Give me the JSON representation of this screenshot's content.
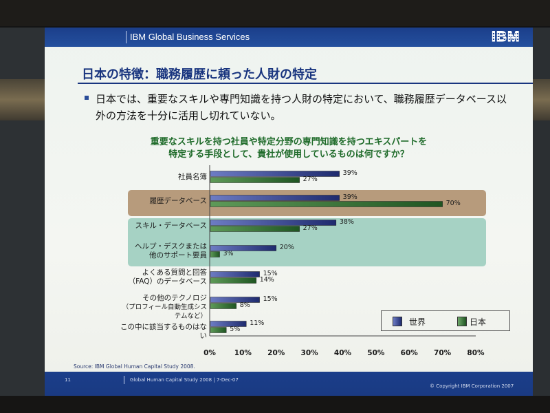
{
  "header": {
    "company": "IBM Global Business Services",
    "logo_text": "IBM"
  },
  "slide": {
    "title": "日本の特徴：職務履歴に頼った人財の特定",
    "bullet": "日本では、重要なスキルや専門知識を持つ人財の特定において、職務履歴データベース以外の方法を十分に活用し切れていない。"
  },
  "chart_data": {
    "type": "bar",
    "orientation": "horizontal",
    "title": "重要なスキルを持つ社員や特定分野の専門知識を持つエキスパートを",
    "subtitle": "特定する手段として、貴社が使用しているものは何ですか？",
    "categories": [
      [
        "社員名簿"
      ],
      [
        "履歴データベース"
      ],
      [
        "スキル・データベース"
      ],
      [
        "ヘルプ・デスクまたは",
        "他のサポート要員"
      ],
      [
        "よくある質問と回答",
        "（FAQ）のデータベース"
      ],
      [
        "その他のテクノロジ",
        "（プロフィール自動生成システムなど）"
      ],
      [
        "この中に該当するものはない"
      ]
    ],
    "series": [
      {
        "name": "世界",
        "values": [
          39,
          39,
          38,
          20,
          15,
          15,
          11
        ],
        "color": "#33408e"
      },
      {
        "name": "日本",
        "values": [
          27,
          70,
          27,
          3,
          14,
          8,
          5
        ],
        "color": "#2c6a2e"
      }
    ],
    "xticks": [
      "0%",
      "10%",
      "20%",
      "30%",
      "40%",
      "50%",
      "60%",
      "70%",
      "80%"
    ],
    "xlim": [
      0,
      80
    ],
    "value_suffix": "%",
    "highlight_groups": [
      {
        "categories": [
          1
        ],
        "color": "#b79b7c"
      },
      {
        "categories": [
          2,
          3
        ],
        "color": "#a6d2c4"
      }
    ],
    "legend": "bottom-right",
    "grid": false
  },
  "footer": {
    "source": "Source: IBM Global Human Capital Study 2008.",
    "page_number": "11",
    "text": "Global Human Capital Study 2008 | 7-Dec-07",
    "copyright": "© Copyright IBM Corporation 2007"
  }
}
